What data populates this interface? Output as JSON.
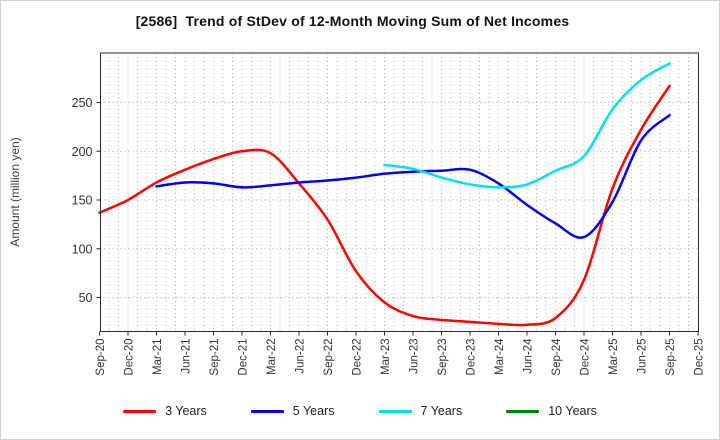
{
  "chart_data": {
    "type": "line",
    "title": "[2586]  Trend of StDev of 12-Month Moving Sum of Net Incomes",
    "ylabel": "Amount (million yen)",
    "xlabel": "",
    "categories": [
      "Sep-20",
      "Dec-20",
      "Mar-21",
      "Jun-21",
      "Sep-21",
      "Dec-21",
      "Mar-22",
      "Jun-22",
      "Sep-22",
      "Dec-22",
      "Mar-23",
      "Jun-23",
      "Sep-23",
      "Dec-23",
      "Mar-24",
      "Jun-24",
      "Sep-24",
      "Dec-24",
      "Mar-25",
      "Jun-25",
      "Sep-25",
      "Dec-25"
    ],
    "yticks": [
      50,
      100,
      150,
      200,
      250
    ],
    "ylim": [
      15,
      300
    ],
    "grid": true,
    "legend_position": "bottom",
    "series": [
      {
        "name": "3 Years",
        "color": "#ff0000",
        "values": [
          137,
          150,
          168,
          181,
          192,
          200,
          198,
          167,
          130,
          77,
          45,
          31,
          27,
          25,
          23,
          22,
          29,
          68,
          162,
          222,
          267,
          null
        ]
      },
      {
        "name": "5 Years",
        "color": "#0000ee",
        "values": [
          null,
          null,
          164,
          168,
          167,
          163,
          165,
          168,
          170,
          173,
          177,
          179,
          180,
          181,
          167,
          145,
          126,
          112,
          148,
          211,
          237,
          null
        ]
      },
      {
        "name": "7 Years",
        "color": "#00e0ea",
        "values": [
          null,
          null,
          null,
          null,
          null,
          null,
          null,
          null,
          null,
          null,
          186,
          182,
          173,
          166,
          163,
          166,
          180,
          195,
          243,
          273,
          290,
          null
        ]
      },
      {
        "name": "10 Years",
        "color": "#008000",
        "values": [
          null,
          null,
          null,
          null,
          null,
          null,
          null,
          null,
          null,
          null,
          null,
          null,
          null,
          null,
          null,
          null,
          null,
          null,
          null,
          null,
          null,
          null
        ]
      }
    ]
  }
}
